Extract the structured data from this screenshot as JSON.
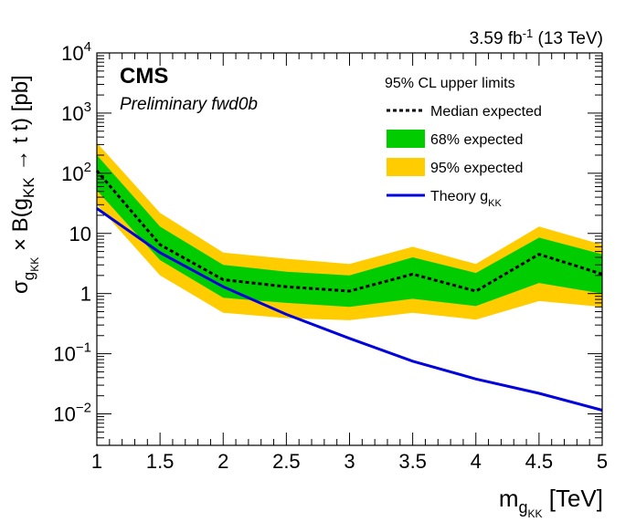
{
  "chart_data": {
    "type": "line",
    "lumi_label": "3.59 fb",
    "lumi_sup": "-1",
    "lumi_energy": " (13 TeV)",
    "experiment": "CMS",
    "subtitle": "Preliminary fwd0b",
    "xlabel": {
      "main": "m",
      "sub1": "g",
      "sub2": "KK",
      "unit": " [TeV]"
    },
    "ylabel": {
      "sigma": "σ",
      "sub1": "g",
      "sub2": "KK",
      "mid": " × B(g",
      "sub3": "KK",
      "rest": " → t t) [pb]"
    },
    "xlim": [
      1,
      5
    ],
    "ylim": [
      0.003,
      10000
    ],
    "yscale": "log",
    "x_ticks": [
      {
        "v": 1,
        "label": "1"
      },
      {
        "v": 1.5,
        "label": "1.5"
      },
      {
        "v": 2,
        "label": "2"
      },
      {
        "v": 2.5,
        "label": "2.5"
      },
      {
        "v": 3,
        "label": "3"
      },
      {
        "v": 3.5,
        "label": "3.5"
      },
      {
        "v": 4,
        "label": "4"
      },
      {
        "v": 4.5,
        "label": "4.5"
      },
      {
        "v": 5,
        "label": "5"
      }
    ],
    "y_ticks": [
      {
        "v": 10000,
        "base": "10",
        "exp": "4"
      },
      {
        "v": 1000,
        "base": "10",
        "exp": "3"
      },
      {
        "v": 100,
        "base": "10",
        "exp": "2"
      },
      {
        "v": 10,
        "base": "10",
        "exp": ""
      },
      {
        "v": 1,
        "base": "1",
        "exp": ""
      },
      {
        "v": 0.1,
        "base": "10",
        "exp": "−1"
      },
      {
        "v": 0.01,
        "base": "10",
        "exp": "−2"
      }
    ],
    "legend": {
      "header": "95% CL upper limits",
      "placement": "top-right",
      "entries": [
        {
          "key": "median",
          "label": "Median expected",
          "sub": ""
        },
        {
          "key": "band68",
          "label": "68% expected",
          "sub": ""
        },
        {
          "key": "band95",
          "label": "95% expected",
          "sub": ""
        },
        {
          "key": "theory",
          "label": "Theory g",
          "sub": "KK"
        }
      ]
    },
    "colors": {
      "band68": "#00cc00",
      "band95": "#ffcc00",
      "median": "#000000",
      "theory": "#0000dd"
    },
    "x": [
      1,
      1.5,
      2,
      2.5,
      3,
      3.5,
      4,
      4.5,
      5
    ],
    "series": [
      {
        "key": "band95_lo",
        "values": [
          30,
          2.0,
          0.48,
          0.39,
          0.36,
          0.48,
          0.37,
          0.75,
          0.6
        ]
      },
      {
        "key": "band95_hi",
        "values": [
          320,
          22,
          4.8,
          3.8,
          3.1,
          6.0,
          3.1,
          13,
          6.5
        ]
      },
      {
        "key": "band68_lo",
        "values": [
          52,
          3.6,
          0.85,
          0.7,
          0.6,
          0.82,
          0.62,
          1.5,
          1.0
        ]
      },
      {
        "key": "band68_hi",
        "values": [
          200,
          13,
          3.0,
          2.3,
          2.0,
          4.0,
          2.2,
          8.5,
          4.5
        ]
      },
      {
        "key": "median",
        "values": [
          110,
          6.5,
          1.7,
          1.3,
          1.1,
          2.1,
          1.1,
          4.5,
          2.1
        ]
      },
      {
        "key": "theory",
        "values": [
          26,
          4.8,
          1.3,
          0.45,
          0.18,
          0.075,
          0.038,
          0.022,
          0.0115
        ]
      }
    ]
  }
}
